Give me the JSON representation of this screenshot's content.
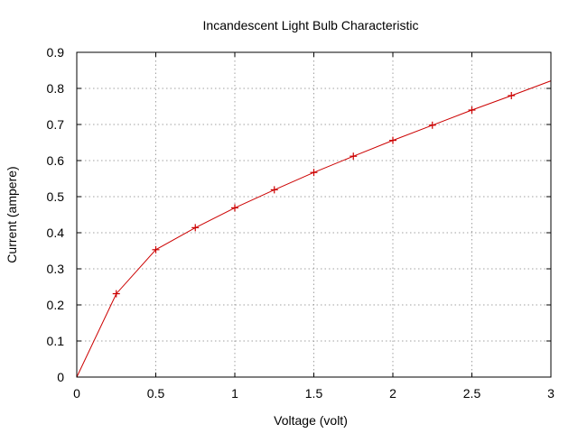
{
  "chart_data": {
    "type": "line",
    "title": "Incandescent Light Bulb Characteristic",
    "xlabel": "Voltage (volt)",
    "ylabel": "Current (ampere)",
    "xlim": [
      0,
      3
    ],
    "ylim": [
      0,
      0.9
    ],
    "x_ticks": [
      "0",
      "0.5",
      "1",
      "1.5",
      "2",
      "2.5",
      "3"
    ],
    "y_ticks": [
      "0",
      "0.1",
      "0.2",
      "0.3",
      "0.4",
      "0.5",
      "0.6",
      "0.7",
      "0.8",
      "0.9"
    ],
    "grid": true,
    "series_color": "#cc0000",
    "marker": "plus",
    "series": [
      {
        "x": [
          0,
          0.25,
          0.5,
          0.75,
          1.0,
          1.25,
          1.5,
          1.75,
          2.0,
          2.25,
          2.5,
          2.75,
          3.0
        ],
        "y": [
          0,
          0.231,
          0.353,
          0.414,
          0.469,
          0.519,
          0.567,
          0.612,
          0.656,
          0.698,
          0.74,
          0.78,
          0.821
        ],
        "markers_at": [
          0.25,
          0.5,
          0.75,
          1.0,
          1.25,
          1.5,
          1.75,
          2.0,
          2.25,
          2.5,
          2.75
        ]
      }
    ]
  }
}
